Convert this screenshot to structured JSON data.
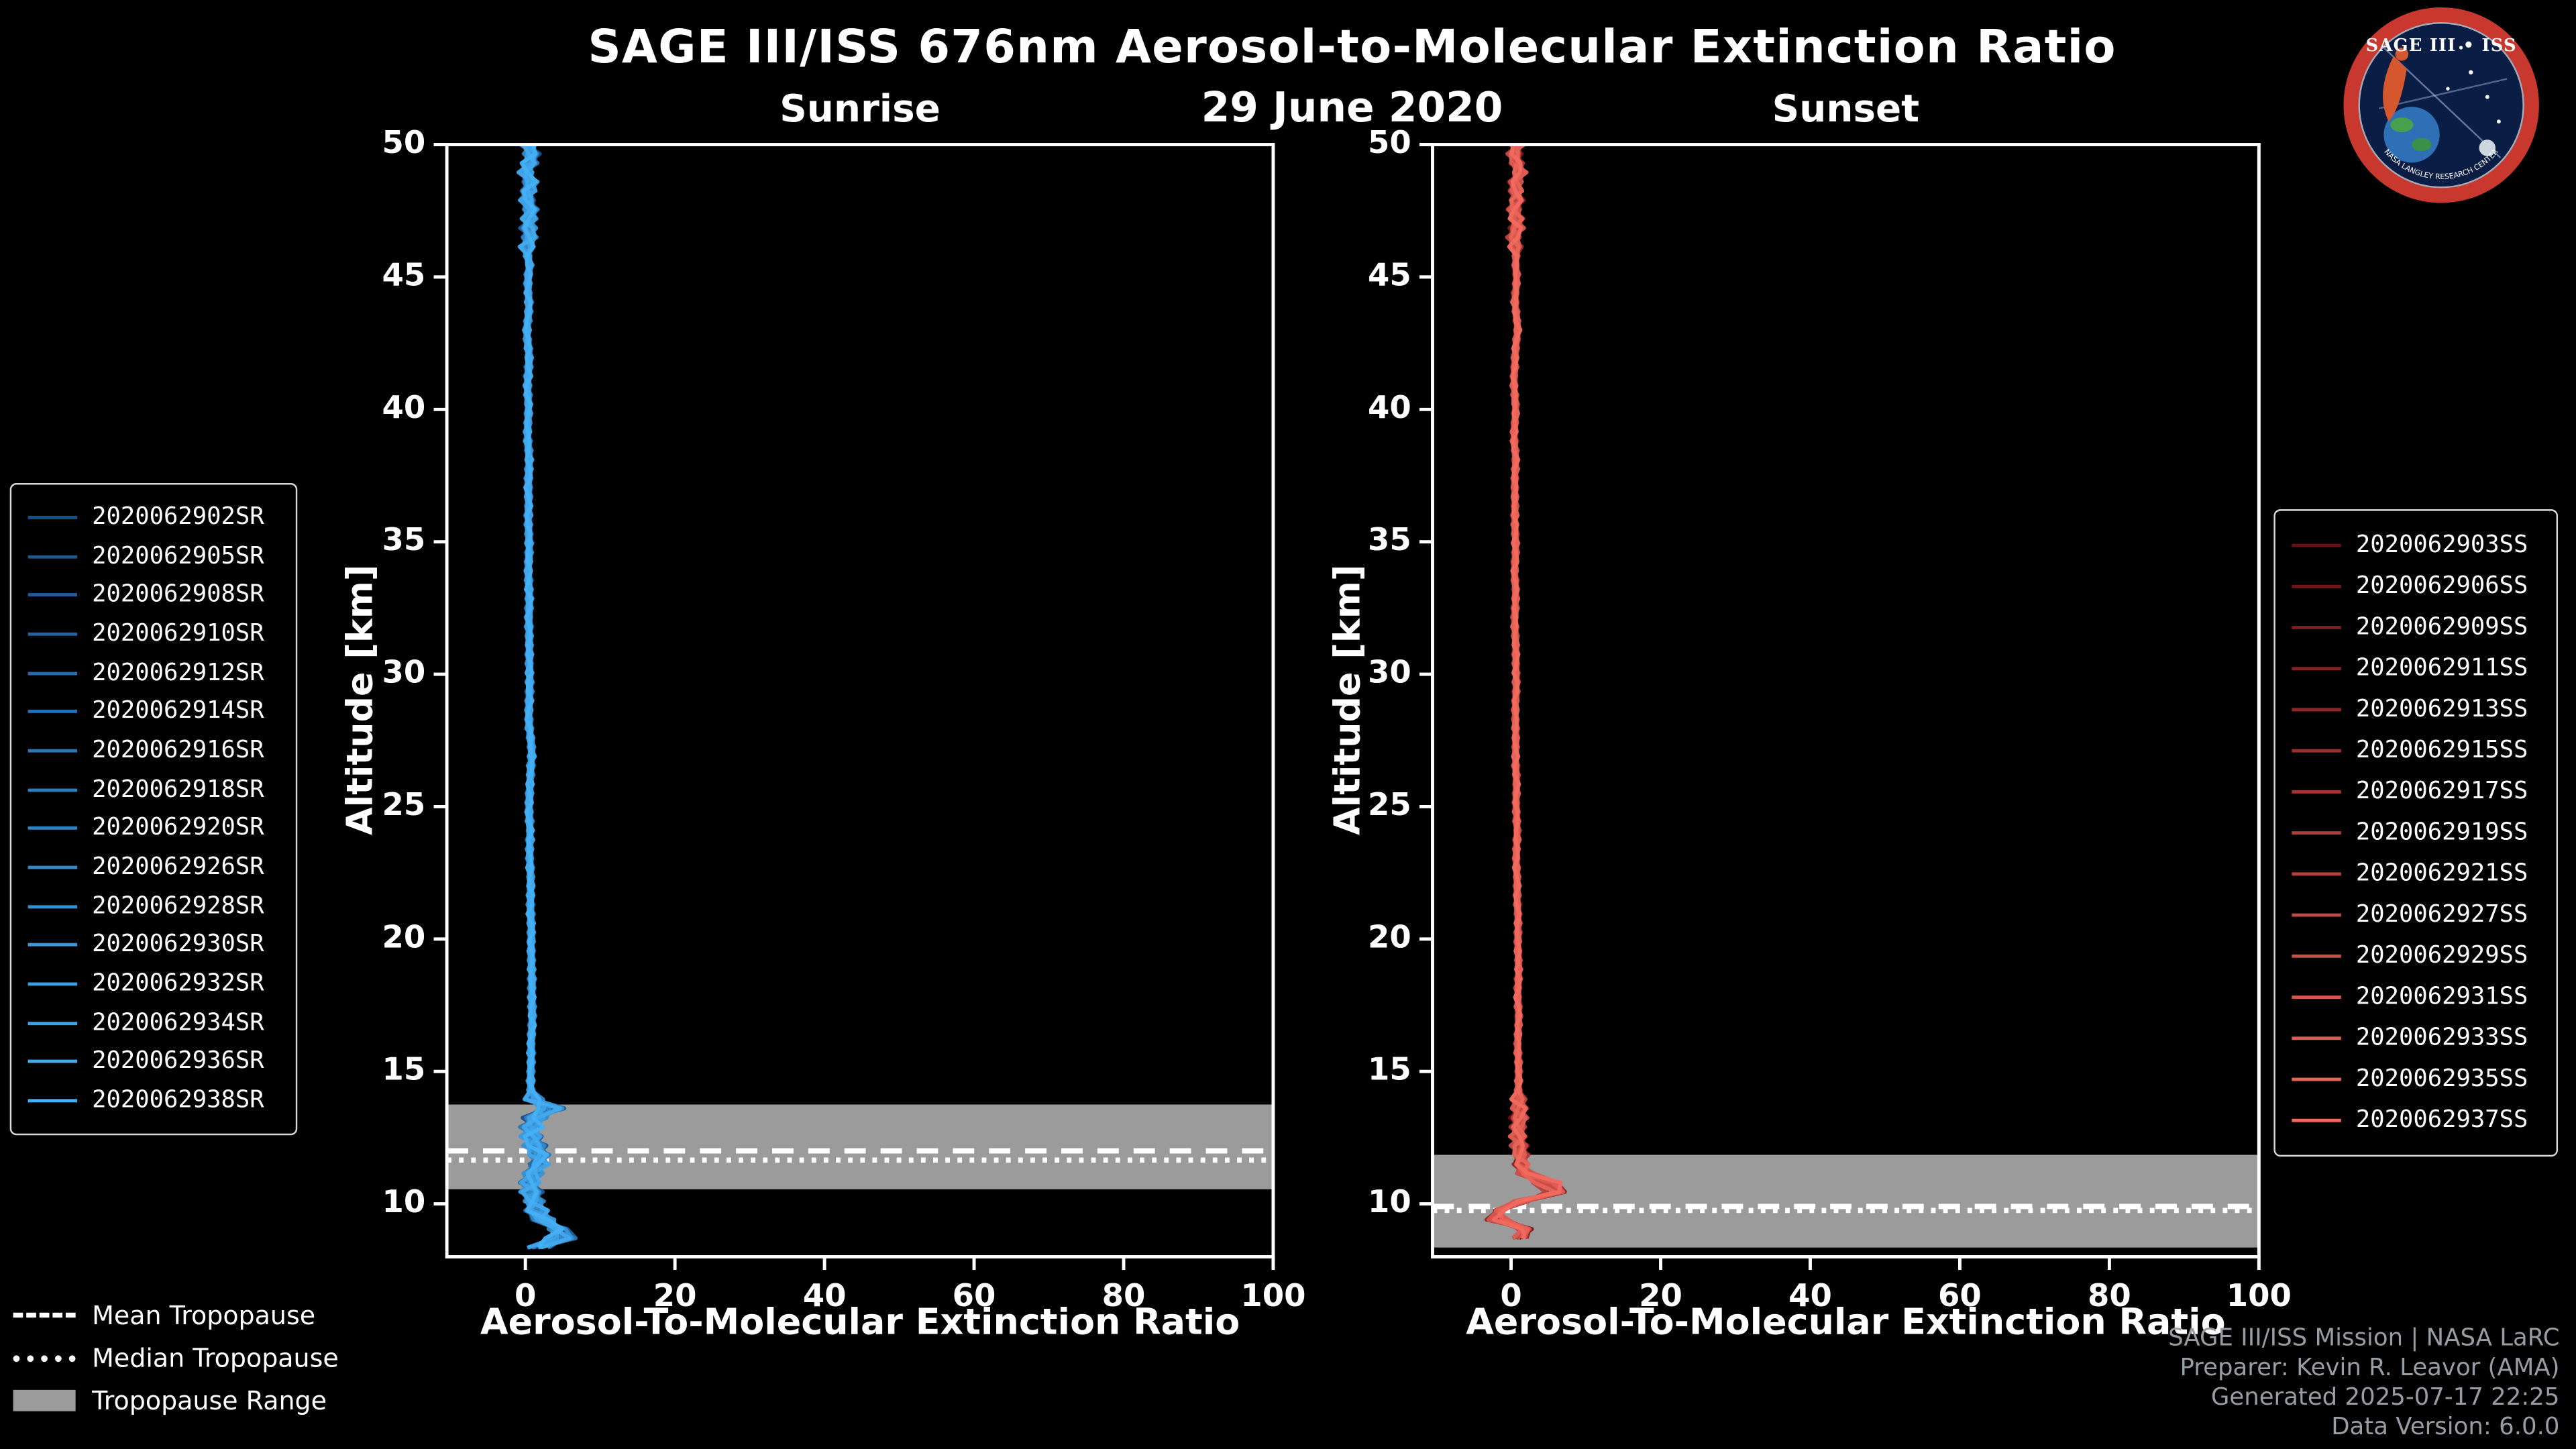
{
  "header": {
    "title": "SAGE III/ISS 676nm Aerosol-to-Molecular Extinction Ratio",
    "date": "29 June 2020"
  },
  "logo": {
    "title": "SAGE III • ISS",
    "ring_text": "NASA LANGLEY RESEARCH CENTER",
    "ring_color": "#c8382e",
    "bg_color": "#0a1d45"
  },
  "footer": {
    "credits": [
      "SAGE III/ISS Mission | NASA LaRC",
      "Preparer: Kevin R. Leavor (AMA)",
      "Generated 2025-07-17 22:25",
      "Data Version: 6.0.0"
    ]
  },
  "tropopause_legend": {
    "items": [
      {
        "label": "Mean Tropopause",
        "style": "dashed"
      },
      {
        "label": "Median Tropopause",
        "style": "dotted"
      },
      {
        "label": "Tropopause Range",
        "style": "band",
        "color": "#9b9b9b"
      }
    ]
  },
  "chart_data": {
    "type": "line",
    "xlabel": "Aerosol-To-Molecular Extinction Ratio",
    "ylabel": "Altitude [km]",
    "xlim": [
      -10.5,
      100
    ],
    "ylim": [
      8,
      50
    ],
    "xticks": [
      0,
      20,
      40,
      60,
      80,
      100
    ],
    "yticks": [
      10,
      15,
      20,
      25,
      30,
      35,
      40,
      45,
      50
    ],
    "band_color": "#9b9b9b",
    "panels": [
      {
        "title": "Sunrise",
        "baseline": 0.8,
        "noise": {
          "base": 0.45,
          "low": 1.6,
          "top": 1.1
        },
        "tropopause": {
          "mean": 12.0,
          "median": 11.65,
          "range": [
            10.55,
            13.75
          ]
        },
        "series": [
          {
            "name": "2020062902SR",
            "color": "#1b4f8a"
          },
          {
            "name": "2020062905SR",
            "color": "#1e5691"
          },
          {
            "name": "2020062908SR",
            "color": "#215c98"
          },
          {
            "name": "2020062910SR",
            "color": "#23629f"
          },
          {
            "name": "2020062912SR",
            "color": "#2669a7"
          },
          {
            "name": "2020062914SR",
            "color": "#296fae"
          },
          {
            "name": "2020062916SR",
            "color": "#2c76b5"
          },
          {
            "name": "2020062918SR",
            "color": "#2f7cbc"
          },
          {
            "name": "2020062920SR",
            "color": "#3183c3"
          },
          {
            "name": "2020062926SR",
            "color": "#3489ca"
          },
          {
            "name": "2020062928SR",
            "color": "#3790d1"
          },
          {
            "name": "2020062930SR",
            "color": "#3a96d9"
          },
          {
            "name": "2020062932SR",
            "color": "#3d9de0"
          },
          {
            "name": "2020062934SR",
            "color": "#3fa3e7"
          },
          {
            "name": "2020062936SR",
            "color": "#42aaee"
          },
          {
            "name": "2020062938SR",
            "color": "#45b0f5"
          }
        ],
        "mean_profile": {
          "altitude_km": [
            50,
            49.5,
            49,
            48.5,
            48,
            47.5,
            47,
            46.5,
            46,
            45.5,
            45,
            44,
            43,
            42,
            41,
            40,
            39,
            38,
            37,
            36,
            35,
            34,
            33,
            32,
            31,
            30,
            29,
            28,
            27,
            26,
            25,
            24,
            23,
            22,
            21,
            20,
            19,
            18,
            17,
            16,
            15,
            14.5,
            14,
            13.6,
            13.3,
            13,
            12.5,
            12,
            11.6,
            11.2,
            10.8,
            10.4,
            10,
            9.6,
            9.3,
            9,
            8.8,
            8.6,
            8.4,
            8.3
          ],
          "ratio": [
            0.4,
            1.1,
            -0.2,
            0.9,
            0.1,
            0.8,
            0.2,
            0.7,
            0.1,
            0.6,
            0.3,
            0.5,
            0.2,
            0.5,
            0.3,
            0.4,
            0.3,
            0.5,
            0.4,
            0.4,
            0.5,
            0.4,
            0.5,
            0.5,
            0.5,
            0.6,
            0.5,
            0.5,
            0.9,
            0.6,
            0.5,
            0.6,
            0.6,
            0.7,
            0.7,
            0.8,
            0.8,
            0.9,
            0.9,
            0.8,
            0.7,
            0.7,
            0.9,
            3.6,
            1.5,
            0.8,
            0.9,
            1.6,
            2.4,
            1.2,
            0.7,
            0.8,
            1.1,
            1.8,
            3.2,
            5.5,
            6.5,
            4.2,
            2.2,
            1.5
          ]
        }
      },
      {
        "title": "Sunset",
        "baseline": 0.9,
        "noise": {
          "base": 0.4,
          "low": 1.2,
          "top": 1.0
        },
        "tropopause": {
          "mean": 9.9,
          "median": 9.75,
          "range": [
            8.35,
            11.85
          ]
        },
        "series": [
          {
            "name": "2020062903SS",
            "color": "#6b0f14"
          },
          {
            "name": "2020062906SS",
            "color": "#751619"
          },
          {
            "name": "2020062909SS",
            "color": "#7e1c1f"
          },
          {
            "name": "2020062911SS",
            "color": "#882324"
          },
          {
            "name": "2020062913SS",
            "color": "#922929"
          },
          {
            "name": "2020062915SS",
            "color": "#9b302e"
          },
          {
            "name": "2020062917SS",
            "color": "#a53634"
          },
          {
            "name": "2020062919SS",
            "color": "#af3d39"
          },
          {
            "name": "2020062921SS",
            "color": "#b8433e"
          },
          {
            "name": "2020062927SS",
            "color": "#c24a44"
          },
          {
            "name": "2020062929SS",
            "color": "#cb5049"
          },
          {
            "name": "2020062931SS",
            "color": "#d5574e"
          },
          {
            "name": "2020062933SS",
            "color": "#df5d54"
          },
          {
            "name": "2020062935SS",
            "color": "#e86459"
          },
          {
            "name": "2020062937SS",
            "color": "#f26a5e"
          }
        ],
        "mean_profile": {
          "altitude_km": [
            50,
            49.5,
            49,
            48.5,
            48,
            47.5,
            47,
            46.5,
            46,
            45.5,
            45,
            44,
            43,
            42,
            41,
            40,
            39,
            38,
            37,
            36,
            35,
            34,
            33,
            32,
            31,
            30,
            29,
            28,
            27,
            26,
            25,
            24,
            23,
            22,
            21,
            20,
            19,
            18,
            17,
            16,
            15,
            14,
            13,
            12.5,
            12,
            11.5,
            11.1,
            10.8,
            10.6,
            10.4,
            10.2,
            10,
            9.8,
            9.6,
            9.4,
            9.2,
            9,
            8.8,
            8.6,
            8.4
          ],
          "ratio": [
            0.9,
            0.3,
            1.2,
            0.4,
            1.0,
            0.3,
            0.9,
            0.4,
            0.8,
            0.5,
            0.8,
            0.5,
            0.9,
            0.5,
            0.4,
            0.6,
            0.4,
            0.6,
            0.5,
            0.5,
            0.6,
            0.5,
            0.6,
            0.5,
            0.6,
            0.7,
            0.6,
            0.6,
            0.6,
            0.7,
            0.7,
            0.8,
            0.7,
            0.8,
            0.9,
            0.9,
            1.0,
            0.9,
            1.0,
            0.9,
            1.0,
            1.0,
            1.1,
            1.0,
            1.2,
            1.4,
            2.2,
            6.0,
            11.5,
            6.5,
            2.0,
            0.5,
            -1.5,
            -4.5,
            -2.0,
            0.5,
            2.8,
            1.5,
            0.8,
            0.4
          ]
        }
      }
    ]
  }
}
